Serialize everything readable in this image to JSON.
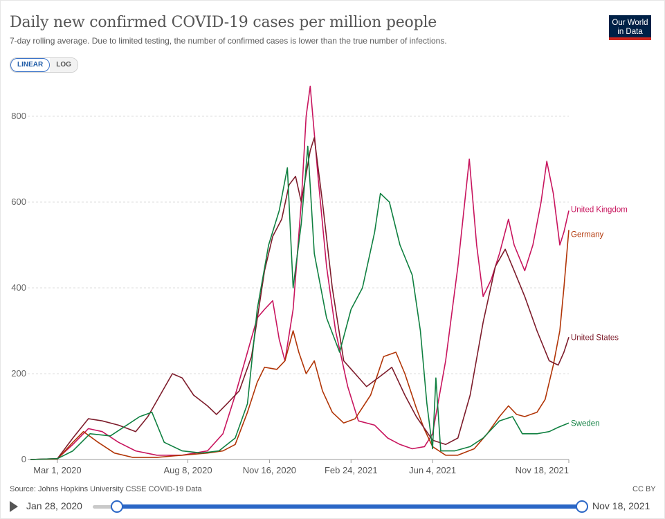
{
  "header": {
    "title": "Daily new confirmed COVID-19 cases per million people",
    "subtitle": "7-day rolling average. Due to limited testing, the number of confirmed cases is lower than the true number of infections.",
    "logo_line1": "Our World",
    "logo_line2": "in Data"
  },
  "scale_toggle": {
    "linear_label": "LINEAR",
    "log_label": "LOG",
    "selected": "LINEAR"
  },
  "footer": {
    "source": "Source: Johns Hopkins University CSSE COVID-19 Data",
    "license": "CC BY",
    "timeline_start": "Jan 28, 2020",
    "timeline_end": "Nov 18, 2021"
  },
  "chart_data": {
    "type": "line",
    "title": "Daily new confirmed COVID-19 cases per million people",
    "ylim": [
      0,
      875
    ],
    "xlim": [
      "2020-01-28",
      "2021-11-18"
    ],
    "yticks": [
      0,
      200,
      400,
      600,
      800
    ],
    "xticks": [
      {
        "date": "2020-03-01",
        "label": "Mar 1, 2020"
      },
      {
        "date": "2020-08-08",
        "label": "Aug 8, 2020"
      },
      {
        "date": "2020-11-16",
        "label": "Nov 16, 2020"
      },
      {
        "date": "2021-02-24",
        "label": "Feb 24, 2021"
      },
      {
        "date": "2021-06-04",
        "label": "Jun 4, 2021"
      },
      {
        "date": "2021-11-18",
        "label": "Nov 18, 2021"
      }
    ],
    "grid": true,
    "series": [
      {
        "name": "United Kingdom",
        "color": "#c8155e",
        "points": [
          [
            "2020-01-28",
            0
          ],
          [
            "2020-03-01",
            2
          ],
          [
            "2020-03-20",
            35
          ],
          [
            "2020-04-08",
            72
          ],
          [
            "2020-04-25",
            65
          ],
          [
            "2020-05-15",
            40
          ],
          [
            "2020-06-05",
            20
          ],
          [
            "2020-07-01",
            10
          ],
          [
            "2020-08-01",
            10
          ],
          [
            "2020-09-01",
            20
          ],
          [
            "2020-09-20",
            60
          ],
          [
            "2020-10-05",
            150
          ],
          [
            "2020-10-20",
            250
          ],
          [
            "2020-11-01",
            330
          ],
          [
            "2020-11-10",
            350
          ],
          [
            "2020-11-20",
            370
          ],
          [
            "2020-11-28",
            280
          ],
          [
            "2020-12-05",
            230
          ],
          [
            "2020-12-15",
            350
          ],
          [
            "2020-12-25",
            600
          ],
          [
            "2020-12-31",
            800
          ],
          [
            "2021-01-05",
            870
          ],
          [
            "2021-01-15",
            650
          ],
          [
            "2021-01-25",
            450
          ],
          [
            "2021-02-05",
            300
          ],
          [
            "2021-02-20",
            170
          ],
          [
            "2021-03-05",
            90
          ],
          [
            "2021-03-25",
            80
          ],
          [
            "2021-04-10",
            50
          ],
          [
            "2021-04-25",
            35
          ],
          [
            "2021-05-10",
            25
          ],
          [
            "2021-05-25",
            30
          ],
          [
            "2021-06-04",
            60
          ],
          [
            "2021-06-20",
            230
          ],
          [
            "2021-07-05",
            450
          ],
          [
            "2021-07-19",
            700
          ],
          [
            "2021-07-28",
            500
          ],
          [
            "2021-08-05",
            380
          ],
          [
            "2021-08-15",
            420
          ],
          [
            "2021-08-25",
            480
          ],
          [
            "2021-09-05",
            560
          ],
          [
            "2021-09-12",
            500
          ],
          [
            "2021-09-25",
            440
          ],
          [
            "2021-10-05",
            500
          ],
          [
            "2021-10-15",
            600
          ],
          [
            "2021-10-22",
            695
          ],
          [
            "2021-10-30",
            620
          ],
          [
            "2021-11-07",
            500
          ],
          [
            "2021-11-12",
            530
          ],
          [
            "2021-11-18",
            580
          ]
        ]
      },
      {
        "name": "Germany",
        "color": "#b13507",
        "points": [
          [
            "2020-01-28",
            0
          ],
          [
            "2020-03-01",
            1
          ],
          [
            "2020-03-20",
            40
          ],
          [
            "2020-04-02",
            65
          ],
          [
            "2020-04-20",
            40
          ],
          [
            "2020-05-10",
            15
          ],
          [
            "2020-06-01",
            5
          ],
          [
            "2020-07-01",
            5
          ],
          [
            "2020-08-01",
            10
          ],
          [
            "2020-09-01",
            15
          ],
          [
            "2020-09-20",
            20
          ],
          [
            "2020-10-05",
            35
          ],
          [
            "2020-10-20",
            110
          ],
          [
            "2020-11-01",
            180
          ],
          [
            "2020-11-10",
            215
          ],
          [
            "2020-11-25",
            210
          ],
          [
            "2020-12-05",
            230
          ],
          [
            "2020-12-15",
            300
          ],
          [
            "2020-12-22",
            250
          ],
          [
            "2020-12-31",
            200
          ],
          [
            "2021-01-10",
            230
          ],
          [
            "2021-01-20",
            160
          ],
          [
            "2021-02-01",
            110
          ],
          [
            "2021-02-15",
            85
          ],
          [
            "2021-03-01",
            95
          ],
          [
            "2021-03-20",
            150
          ],
          [
            "2021-04-05",
            240
          ],
          [
            "2021-04-20",
            250
          ],
          [
            "2021-05-01",
            200
          ],
          [
            "2021-05-15",
            120
          ],
          [
            "2021-05-25",
            70
          ],
          [
            "2021-06-04",
            30
          ],
          [
            "2021-06-20",
            10
          ],
          [
            "2021-07-05",
            10
          ],
          [
            "2021-07-25",
            25
          ],
          [
            "2021-08-10",
            60
          ],
          [
            "2021-08-25",
            100
          ],
          [
            "2021-09-05",
            125
          ],
          [
            "2021-09-15",
            105
          ],
          [
            "2021-09-25",
            100
          ],
          [
            "2021-10-10",
            110
          ],
          [
            "2021-10-20",
            140
          ],
          [
            "2021-10-30",
            220
          ],
          [
            "2021-11-07",
            300
          ],
          [
            "2021-11-12",
            400
          ],
          [
            "2021-11-18",
            535
          ]
        ]
      },
      {
        "name": "United States",
        "color": "#7d1c2b",
        "points": [
          [
            "2020-01-28",
            0
          ],
          [
            "2020-03-01",
            2
          ],
          [
            "2020-03-20",
            50
          ],
          [
            "2020-04-08",
            95
          ],
          [
            "2020-04-25",
            90
          ],
          [
            "2020-05-15",
            80
          ],
          [
            "2020-06-05",
            65
          ],
          [
            "2020-06-20",
            100
          ],
          [
            "2020-07-05",
            150
          ],
          [
            "2020-07-20",
            200
          ],
          [
            "2020-08-01",
            190
          ],
          [
            "2020-08-15",
            150
          ],
          [
            "2020-09-01",
            125
          ],
          [
            "2020-09-12",
            105
          ],
          [
            "2020-09-25",
            130
          ],
          [
            "2020-10-10",
            160
          ],
          [
            "2020-10-25",
            240
          ],
          [
            "2020-11-10",
            440
          ],
          [
            "2020-11-20",
            520
          ],
          [
            "2020-12-01",
            560
          ],
          [
            "2020-12-10",
            640
          ],
          [
            "2020-12-18",
            660
          ],
          [
            "2020-12-25",
            600
          ],
          [
            "2021-01-05",
            720
          ],
          [
            "2021-01-10",
            750
          ],
          [
            "2021-01-20",
            600
          ],
          [
            "2021-02-01",
            400
          ],
          [
            "2021-02-15",
            230
          ],
          [
            "2021-03-01",
            200
          ],
          [
            "2021-03-15",
            170
          ],
          [
            "2021-04-05",
            200
          ],
          [
            "2021-04-15",
            215
          ],
          [
            "2021-05-01",
            150
          ],
          [
            "2021-05-15",
            100
          ],
          [
            "2021-06-04",
            45
          ],
          [
            "2021-06-20",
            35
          ],
          [
            "2021-07-05",
            50
          ],
          [
            "2021-07-20",
            150
          ],
          [
            "2021-08-05",
            320
          ],
          [
            "2021-08-20",
            450
          ],
          [
            "2021-09-01",
            490
          ],
          [
            "2021-09-12",
            440
          ],
          [
            "2021-09-25",
            380
          ],
          [
            "2021-10-10",
            300
          ],
          [
            "2021-10-25",
            230
          ],
          [
            "2021-11-05",
            220
          ],
          [
            "2021-11-12",
            250
          ],
          [
            "2021-11-18",
            285
          ]
        ]
      },
      {
        "name": "Sweden",
        "color": "#108041",
        "points": [
          [
            "2020-01-28",
            0
          ],
          [
            "2020-03-01",
            2
          ],
          [
            "2020-03-20",
            20
          ],
          [
            "2020-04-10",
            60
          ],
          [
            "2020-05-05",
            55
          ],
          [
            "2020-05-25",
            80
          ],
          [
            "2020-06-10",
            100
          ],
          [
            "2020-06-25",
            110
          ],
          [
            "2020-07-10",
            40
          ],
          [
            "2020-08-01",
            20
          ],
          [
            "2020-08-25",
            15
          ],
          [
            "2020-09-15",
            20
          ],
          [
            "2020-10-05",
            50
          ],
          [
            "2020-10-20",
            130
          ],
          [
            "2020-11-01",
            350
          ],
          [
            "2020-11-15",
            500
          ],
          [
            "2020-11-28",
            580
          ],
          [
            "2020-12-08",
            680
          ],
          [
            "2020-12-15",
            400
          ],
          [
            "2020-12-25",
            550
          ],
          [
            "2021-01-02",
            730
          ],
          [
            "2021-01-10",
            480
          ],
          [
            "2021-01-25",
            330
          ],
          [
            "2021-02-10",
            250
          ],
          [
            "2021-02-24",
            350
          ],
          [
            "2021-03-10",
            400
          ],
          [
            "2021-03-25",
            530
          ],
          [
            "2021-04-01",
            620
          ],
          [
            "2021-04-12",
            600
          ],
          [
            "2021-04-25",
            500
          ],
          [
            "2021-05-10",
            430
          ],
          [
            "2021-05-20",
            300
          ],
          [
            "2021-05-28",
            130
          ],
          [
            "2021-06-04",
            25
          ],
          [
            "2021-06-08",
            190
          ],
          [
            "2021-06-14",
            20
          ],
          [
            "2021-07-01",
            20
          ],
          [
            "2021-07-20",
            30
          ],
          [
            "2021-08-05",
            50
          ],
          [
            "2021-08-25",
            90
          ],
          [
            "2021-09-10",
            100
          ],
          [
            "2021-09-22",
            60
          ],
          [
            "2021-10-10",
            60
          ],
          [
            "2021-10-25",
            65
          ],
          [
            "2021-11-05",
            75
          ],
          [
            "2021-11-18",
            85
          ]
        ]
      }
    ]
  }
}
